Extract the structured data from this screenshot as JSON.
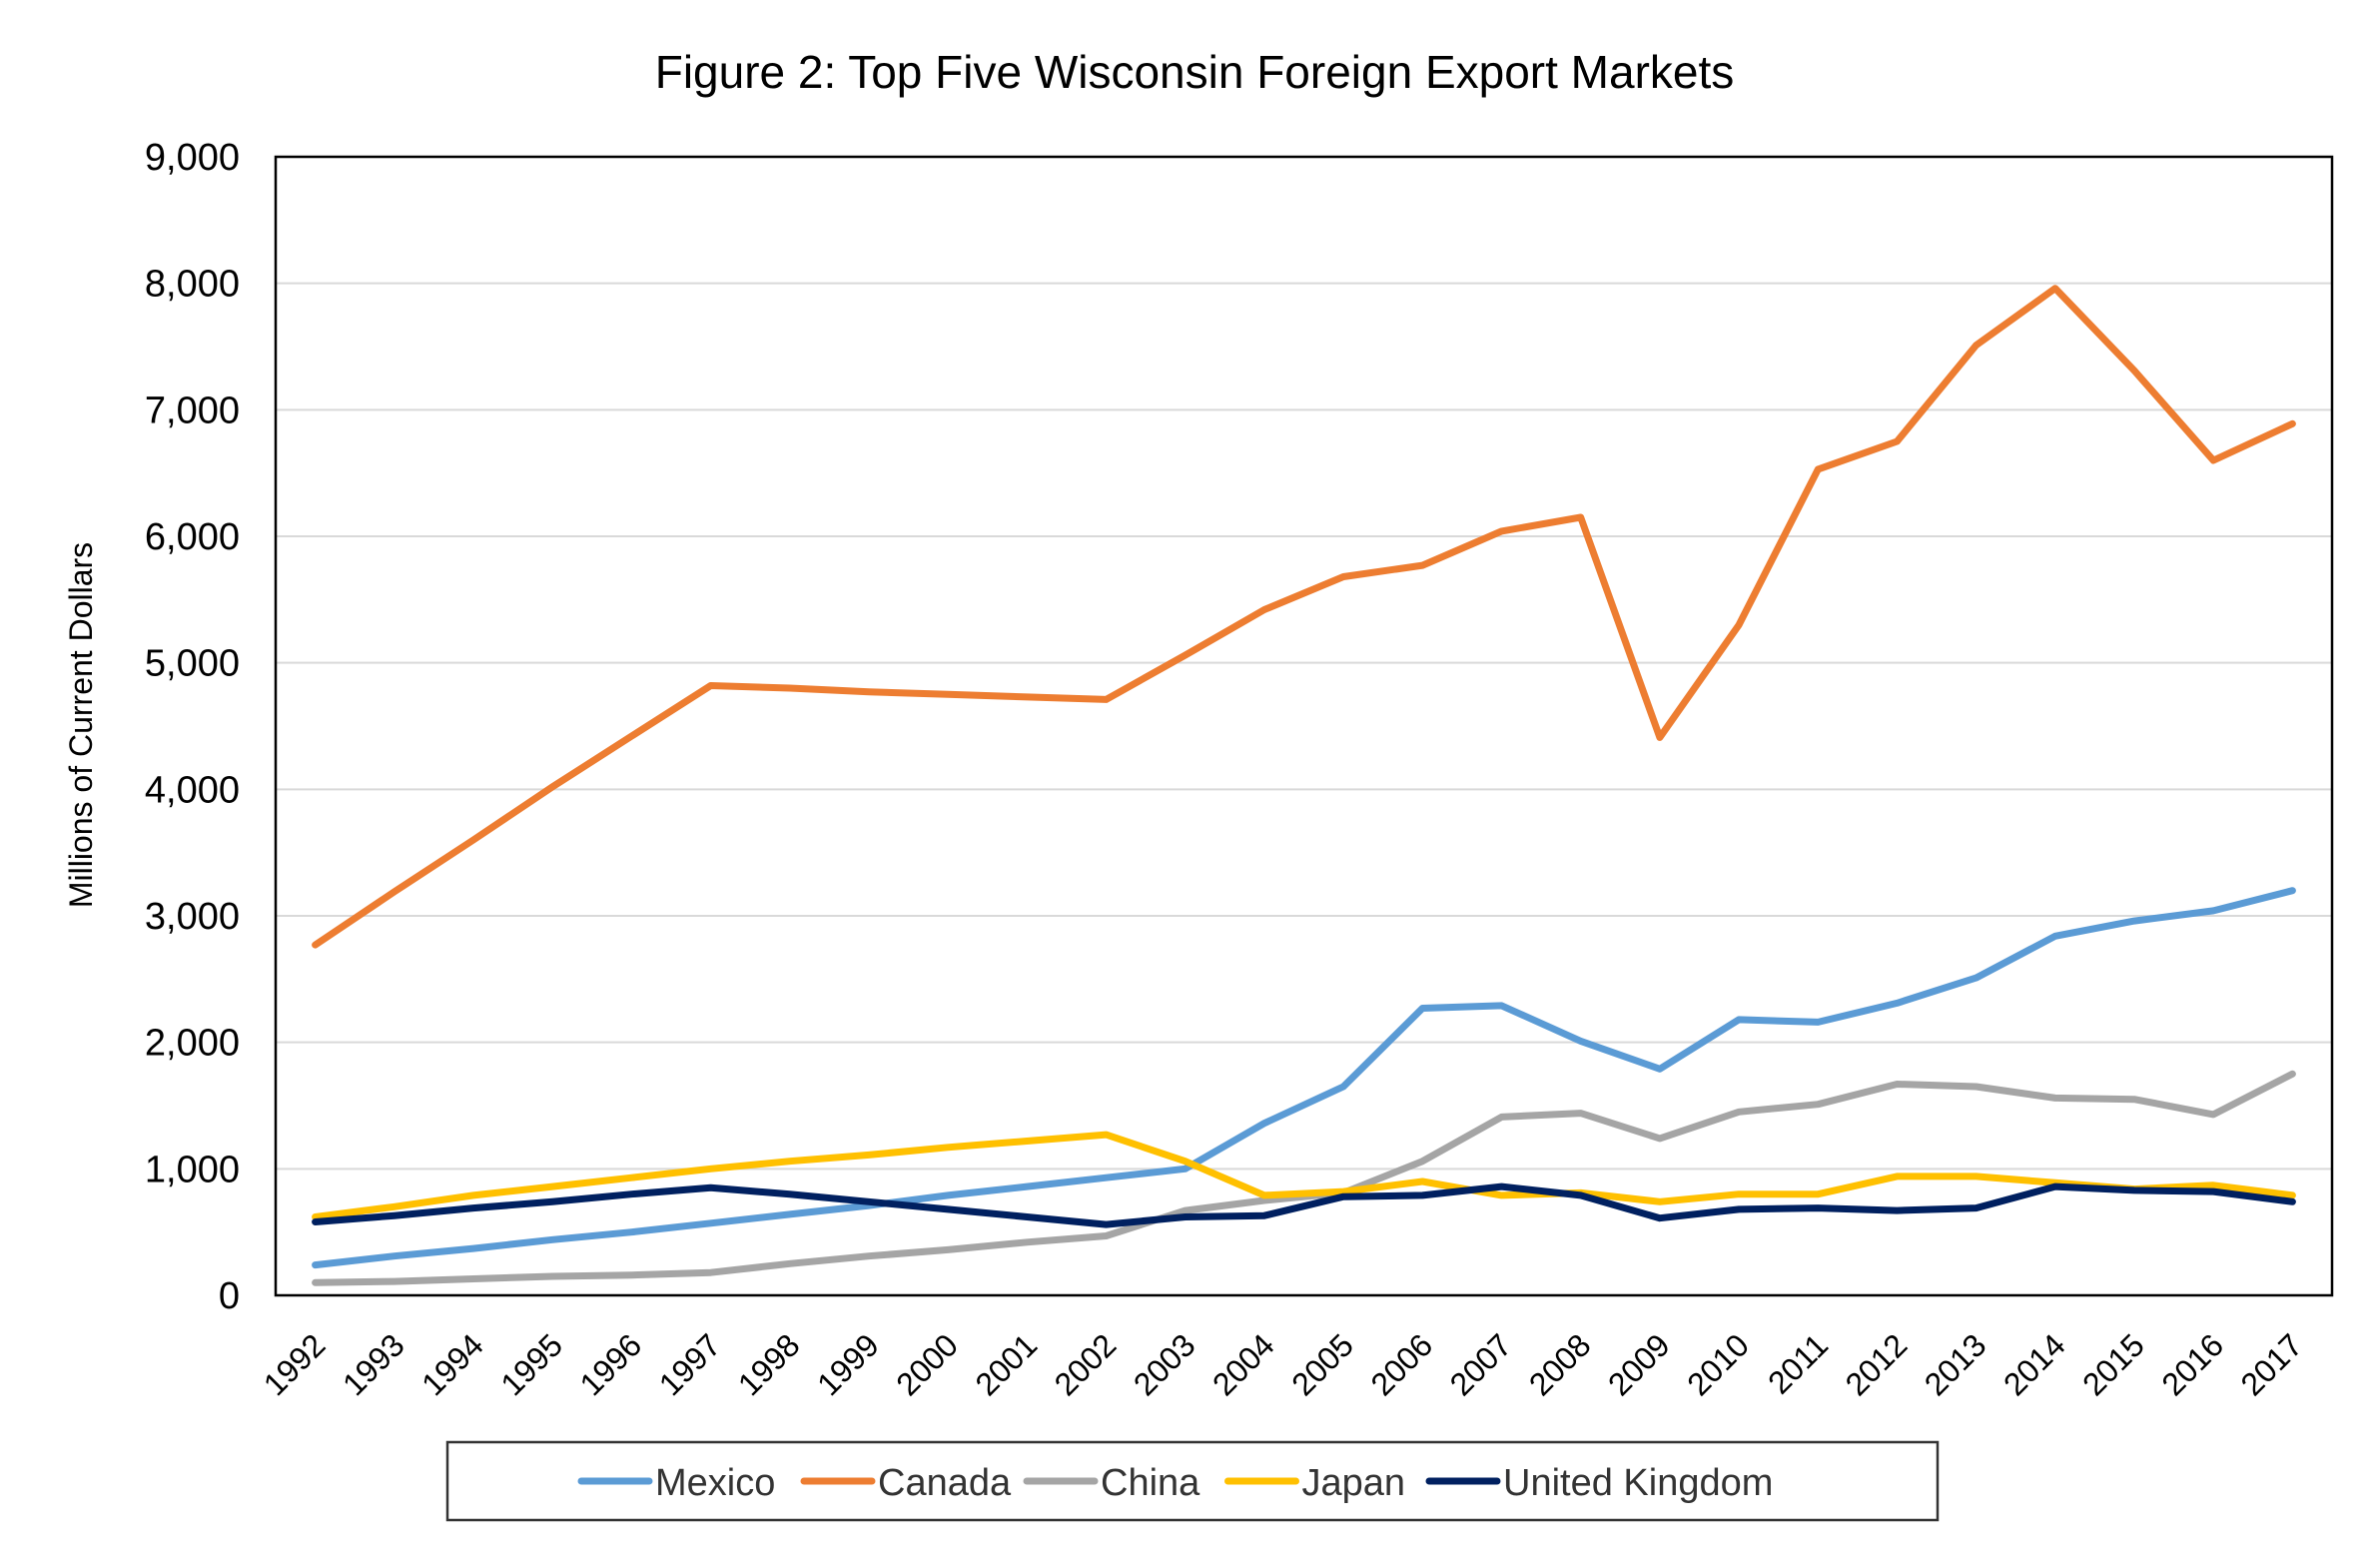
{
  "chart_data": {
    "type": "line",
    "title": "Figure 2: Top Five Wisconsin Foreign Export Markets",
    "xlabel": "",
    "ylabel": "Millions of Current Dollars",
    "ylim": [
      0,
      9000
    ],
    "yticks": [
      0,
      1000,
      2000,
      3000,
      4000,
      5000,
      6000,
      7000,
      8000,
      9000
    ],
    "ytick_labels": [
      "0",
      "1,000",
      "2,000",
      "3,000",
      "4,000",
      "5,000",
      "6,000",
      "7,000",
      "8,000",
      "9,000"
    ],
    "categories": [
      "1992",
      "1993",
      "1994",
      "1995",
      "1996",
      "1997",
      "1998",
      "1999",
      "2000",
      "2001",
      "2002",
      "2003",
      "2004",
      "2005",
      "2006",
      "2007",
      "2008",
      "2009",
      "2010",
      "2011",
      "2012",
      "2013",
      "2014",
      "2015",
      "2016",
      "2017"
    ],
    "grid": true,
    "legend_position": "bottom",
    "series": [
      {
        "name": "Mexico",
        "color": "#5B9BD5",
        "values": [
          240,
          310,
          370,
          440,
          500,
          570,
          640,
          710,
          790,
          860,
          930,
          1000,
          1360,
          1650,
          2270,
          2290,
          2010,
          1790,
          2180,
          2160,
          2310,
          2510,
          2840,
          2960,
          3040,
          3200
        ]
      },
      {
        "name": "Canada",
        "color": "#ED7D31",
        "values": [
          2770,
          3190,
          3600,
          4020,
          4420,
          4820,
          4800,
          4770,
          4750,
          4730,
          4710,
          5060,
          5420,
          5680,
          5770,
          6040,
          6150,
          4410,
          5300,
          6530,
          6750,
          7510,
          7960,
          7310,
          6600,
          6890
        ]
      },
      {
        "name": "China",
        "color": "#A5A5A5",
        "values": [
          100,
          110,
          130,
          150,
          160,
          180,
          250,
          310,
          360,
          420,
          470,
          670,
          750,
          810,
          1060,
          1410,
          1440,
          1240,
          1450,
          1510,
          1670,
          1650,
          1560,
          1550,
          1430,
          1750
        ]
      },
      {
        "name": "Japan",
        "color": "#FFC000",
        "values": [
          620,
          700,
          790,
          860,
          930,
          1000,
          1060,
          1110,
          1170,
          1220,
          1270,
          1060,
          790,
          820,
          900,
          790,
          810,
          740,
          800,
          800,
          940,
          940,
          890,
          840,
          870,
          790
        ]
      },
      {
        "name": "United Kingdom",
        "color": "#002060",
        "values": [
          580,
          630,
          690,
          740,
          800,
          850,
          800,
          740,
          680,
          620,
          560,
          620,
          630,
          780,
          790,
          860,
          790,
          610,
          680,
          690,
          670,
          690,
          860,
          830,
          820,
          740
        ]
      }
    ]
  }
}
